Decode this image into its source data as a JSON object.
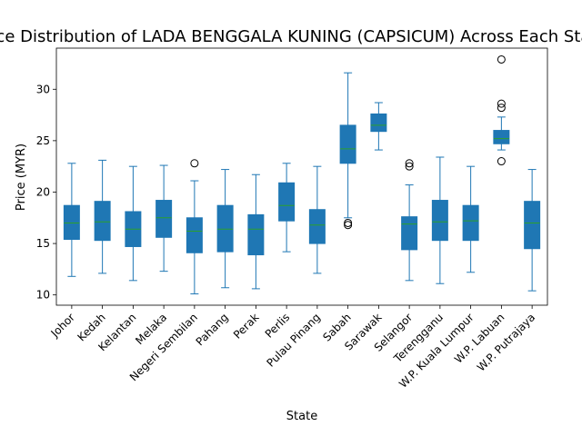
{
  "chart_data": {
    "type": "boxplot",
    "title": "Price Distribution of LADA BENGGALA KUNING (CAPSICUM) Across Each State",
    "xlabel": "State",
    "ylabel": "Price (MYR)",
    "ylim": [
      9.0,
      34.0
    ],
    "yticks": [
      10,
      15,
      20,
      25,
      30
    ],
    "grid": false,
    "box_color": "#1f77b4",
    "median_color": "#2ca02c",
    "categories": [
      "Johor",
      "Kedah",
      "Kelantan",
      "Melaka",
      "Negeri Sembilan",
      "Pahang",
      "Perak",
      "Perlis",
      "Pulau Pinang",
      "Sabah",
      "Sarawak",
      "Selangor",
      "Terengganu",
      "W.P. Kuala Lumpur",
      "W.P. Labuan",
      "W.P. Putrajaya"
    ],
    "boxes": [
      {
        "whislo": 11.8,
        "q1": 15.4,
        "med": 17.0,
        "q3": 18.7,
        "whishi": 22.8,
        "fliers": []
      },
      {
        "whislo": 12.1,
        "q1": 15.3,
        "med": 17.1,
        "q3": 19.1,
        "whishi": 23.1,
        "fliers": []
      },
      {
        "whislo": 11.4,
        "q1": 14.7,
        "med": 16.4,
        "q3": 18.1,
        "whishi": 22.5,
        "fliers": []
      },
      {
        "whislo": 12.3,
        "q1": 15.6,
        "med": 17.5,
        "q3": 19.2,
        "whishi": 22.6,
        "fliers": []
      },
      {
        "whislo": 10.1,
        "q1": 14.1,
        "med": 16.2,
        "q3": 17.5,
        "whishi": 21.1,
        "fliers": [
          22.8
        ]
      },
      {
        "whislo": 10.7,
        "q1": 14.2,
        "med": 16.4,
        "q3": 18.7,
        "whishi": 22.2,
        "fliers": []
      },
      {
        "whislo": 10.6,
        "q1": 13.9,
        "med": 16.4,
        "q3": 17.8,
        "whishi": 21.7,
        "fliers": []
      },
      {
        "whislo": 14.2,
        "q1": 17.2,
        "med": 18.7,
        "q3": 20.9,
        "whishi": 22.8,
        "fliers": []
      },
      {
        "whislo": 12.1,
        "q1": 15.0,
        "med": 16.8,
        "q3": 18.3,
        "whishi": 22.5,
        "fliers": []
      },
      {
        "whislo": 17.5,
        "q1": 22.8,
        "med": 24.2,
        "q3": 26.5,
        "whishi": 31.6,
        "fliers": [
          17.0,
          16.8
        ]
      },
      {
        "whislo": 24.1,
        "q1": 25.9,
        "med": 26.5,
        "q3": 27.6,
        "whishi": 28.7,
        "fliers": []
      },
      {
        "whislo": 11.4,
        "q1": 14.4,
        "med": 16.9,
        "q3": 17.6,
        "whishi": 20.7,
        "fliers": [
          22.8,
          22.5
        ]
      },
      {
        "whislo": 11.1,
        "q1": 15.3,
        "med": 17.1,
        "q3": 19.2,
        "whishi": 23.4,
        "fliers": []
      },
      {
        "whislo": 12.2,
        "q1": 15.3,
        "med": 17.2,
        "q3": 18.7,
        "whishi": 22.5,
        "fliers": []
      },
      {
        "whislo": 24.1,
        "q1": 24.7,
        "med": 25.2,
        "q3": 26.0,
        "whishi": 27.3,
        "fliers": [
          32.9,
          28.6,
          28.2,
          23.0
        ]
      },
      {
        "whislo": 10.4,
        "q1": 14.5,
        "med": 17.0,
        "q3": 19.1,
        "whishi": 22.2,
        "fliers": []
      }
    ]
  }
}
